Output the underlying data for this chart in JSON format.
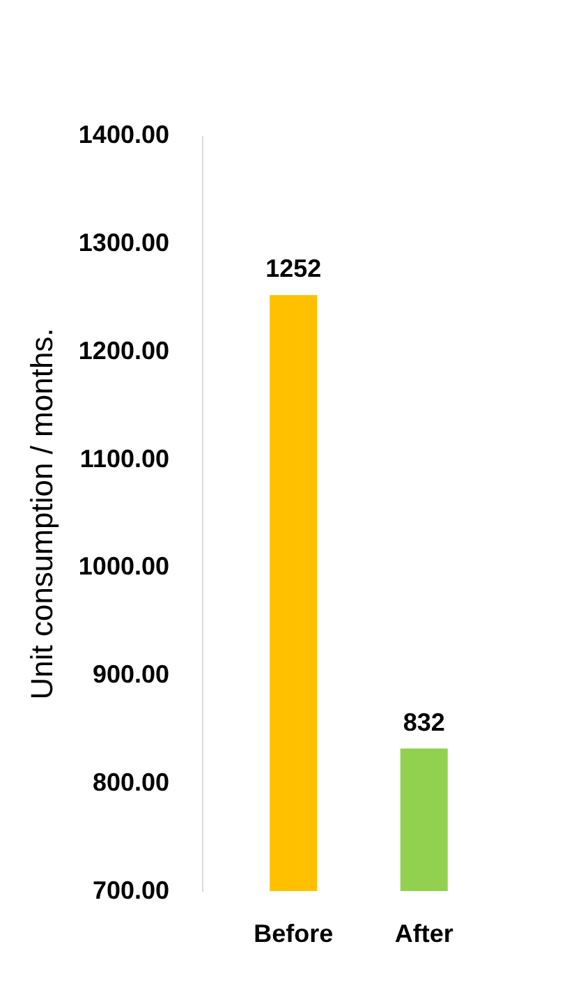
{
  "chart_data": {
    "type": "bar",
    "categories": [
      "Before",
      "After"
    ],
    "values": [
      1252,
      832
    ],
    "colors": [
      "#ffc000",
      "#92d050"
    ],
    "ylabel": "Unit consumption / months.",
    "ylim": [
      700,
      1400
    ],
    "yticks": [
      {
        "value": 700,
        "label": "700.00"
      },
      {
        "value": 800,
        "label": "800.00"
      },
      {
        "value": 900,
        "label": "900.00"
      },
      {
        "value": 1000,
        "label": "1000.00"
      },
      {
        "value": 1100,
        "label": "1100.00"
      },
      {
        "value": 1200,
        "label": "1200.00"
      },
      {
        "value": 1300,
        "label": "1300.00"
      },
      {
        "value": 1400,
        "label": "1400.00"
      }
    ],
    "data_labels": true,
    "grid": false
  }
}
